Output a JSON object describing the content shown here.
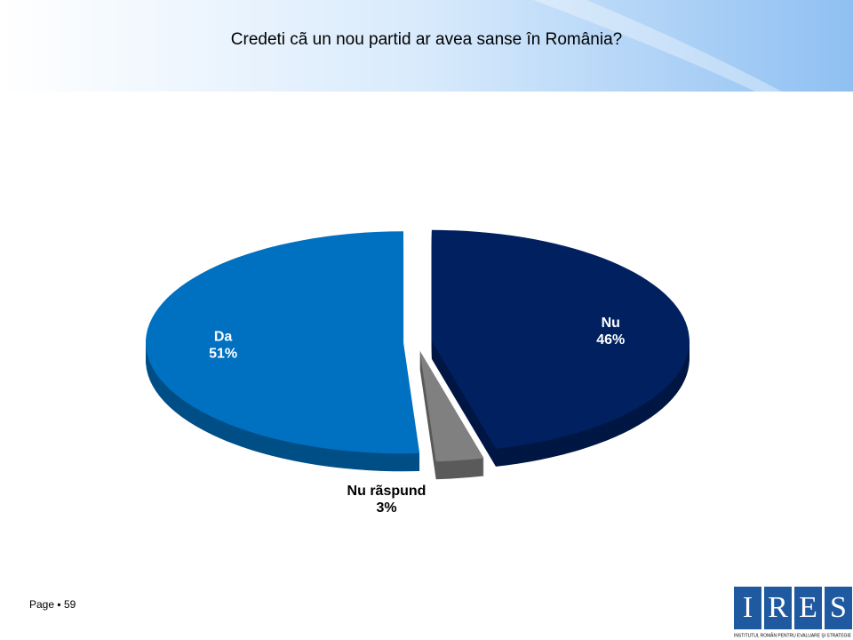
{
  "chart_data": {
    "type": "pie",
    "title": "Credeti cã un nou partid ar avea sanse în România?",
    "categories": [
      "Nu",
      "Nu rãspund",
      "Da"
    ],
    "values": [
      46,
      3,
      51
    ],
    "value_labels": [
      "46%",
      "3%",
      "51%"
    ],
    "colors": [
      "#002060",
      "#808080",
      "#0070c0"
    ]
  },
  "footer": {
    "page": "Page ▪ 59"
  },
  "logo": {
    "letters": [
      "I",
      "R",
      "E",
      "S"
    ],
    "caption": "INSTITUTUL ROMÂN PENTRU EVALUARE ŞI STRATEGIE"
  }
}
